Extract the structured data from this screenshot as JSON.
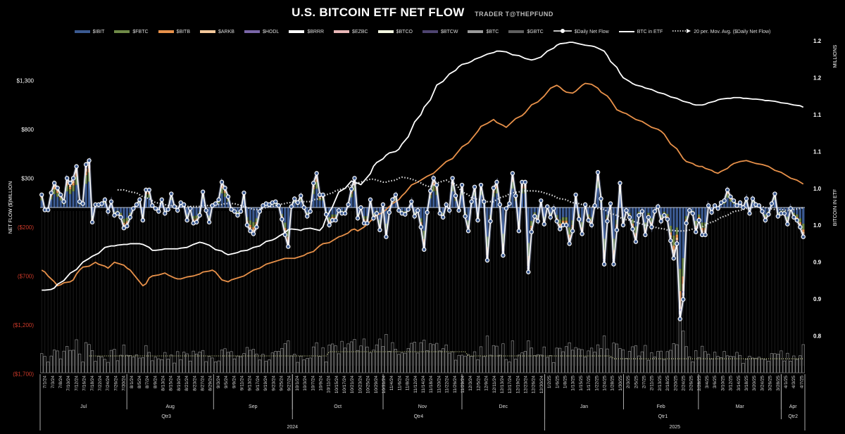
{
  "title": "U.S. BITCOIN ETF NET FLOW",
  "subtitle": "TRADER T@THEPFUND",
  "legend": [
    {
      "label": "$IBIT",
      "color": "#3b5a91",
      "kind": "bar"
    },
    {
      "label": "$FBTC",
      "color": "#6f8a47",
      "kind": "bar"
    },
    {
      "label": "$BITB",
      "color": "#e8914a",
      "kind": "bar"
    },
    {
      "label": "$ARKB",
      "color": "#f4c89a",
      "kind": "bar"
    },
    {
      "label": "$HODL",
      "color": "#7a66a8",
      "kind": "bar"
    },
    {
      "label": "$BRRR",
      "color": "#ffffff",
      "kind": "bar"
    },
    {
      "label": "$EZBC",
      "color": "#e9b7b7",
      "kind": "bar"
    },
    {
      "label": "$BTCO",
      "color": "#f3f6e0",
      "kind": "bar"
    },
    {
      "label": "$BTCW",
      "color": "#4e4470",
      "kind": "bar"
    },
    {
      "label": "$BTC",
      "color": "#9a9a9a",
      "kind": "bar"
    },
    {
      "label": "$GBTC",
      "color": "#606060",
      "kind": "bar"
    },
    {
      "label": "$Daily Net Flow",
      "color": "#ffffff",
      "kind": "line-marker"
    },
    {
      "label": "BTC in ETF",
      "color": "#ffffff",
      "kind": "line"
    },
    {
      "label": "20 per. Mov. Avg. ($Daily Net Flow)",
      "color": "#ffffff",
      "kind": "dotted"
    }
  ],
  "chart_data": {
    "type": "bar",
    "title": "U.S. BITCOIN ETF NET FLOW",
    "ylabel": "NET FLOW ($)MILLION",
    "y2label": "BITCOIN IN ETF",
    "y2unit": "MILLIONS",
    "ylim": [
      -1700,
      1550
    ],
    "y2lim": [
      0.8,
      1.28
    ],
    "yticks": [
      1300,
      800,
      300,
      -200,
      -700,
      -1200,
      -1700
    ],
    "ytick_labels": [
      "$1,300",
      "$800",
      "$300",
      "($200)",
      "($700)",
      "($1,200)",
      "($1,700)"
    ],
    "y2ticks": [
      1.25,
      1.2,
      1.15,
      1.1,
      1.05,
      1.0,
      0.95,
      0.9,
      0.85
    ],
    "y2tick_labels": [
      "1.2",
      "1.2",
      "1.1",
      "1.1",
      "1.0",
      "1.0",
      "0.9",
      "0.9",
      "0.8"
    ],
    "x_tick_labels": [
      "7/1/24",
      "7/3/24",
      "7/8/24",
      "7/10/24",
      "7/12/24",
      "7/16/24",
      "7/18/24",
      "7/22/24",
      "7/24/24",
      "7/26/24",
      "7/30/24",
      "8/1/24",
      "8/5/24",
      "8/7/24",
      "8/9/24",
      "8/13/24",
      "8/15/24",
      "8/19/24",
      "8/21/24",
      "8/23/24",
      "8/27/24",
      "8/29/24",
      "9/3/24",
      "9/5/24",
      "9/9/24",
      "9/11/24",
      "9/13/24",
      "9/17/24",
      "9/19/24",
      "9/23/24",
      "9/25/24",
      "9/27/24",
      "10/1/24",
      "10/3/24",
      "10/7/24",
      "10/9/24",
      "10/11/24",
      "10/15/24",
      "10/17/24",
      "10/21/24",
      "10/23/24",
      "10/25/24",
      "10/29/24",
      "10/31/24",
      "11/4/24",
      "11/6/24",
      "11/8/24",
      "11/12/24",
      "11/14/24",
      "11/18/24",
      "11/20/24",
      "11/22/24",
      "11/26/24",
      "11/29/24",
      "12/3/24",
      "12/5/24",
      "12/9/24",
      "12/11/24",
      "12/13/24",
      "12/17/24",
      "12/19/24",
      "12/23/24",
      "12/26/24",
      "12/30/24",
      "1/2/25",
      "1/6/25",
      "1/8/25",
      "1/13/25",
      "1/15/25",
      "1/17/25",
      "1/22/25",
      "1/24/25",
      "1/28/25",
      "1/30/25",
      "2/3/25",
      "2/5/25",
      "2/7/25",
      "2/11/25",
      "2/13/25",
      "2/18/25",
      "2/20/25",
      "2/24/25",
      "2/26/25",
      "2/28/25",
      "3/4/25",
      "3/6/25",
      "3/10/25",
      "3/12/25",
      "3/14/25",
      "3/18/25",
      "3/20/25",
      "3/24/25",
      "3/26/25",
      "3/28/25",
      "4/1/25",
      "4/3/25",
      "4/7/25"
    ],
    "months": [
      {
        "label": "Jul",
        "start": 0,
        "end": 22
      },
      {
        "label": "Aug",
        "start": 22,
        "end": 44
      },
      {
        "label": "Sep",
        "start": 44,
        "end": 64
      },
      {
        "label": "Oct",
        "start": 64,
        "end": 87
      },
      {
        "label": "Nov",
        "start": 87,
        "end": 107
      },
      {
        "label": "Dec",
        "start": 107,
        "end": 128
      },
      {
        "label": "Jan",
        "start": 128,
        "end": 148
      },
      {
        "label": "Feb",
        "start": 148,
        "end": 167
      },
      {
        "label": "Mar",
        "start": 167,
        "end": 188
      },
      {
        "label": "Apr",
        "start": 188,
        "end": 194
      }
    ],
    "quarters": [
      {
        "label": "Qtr3",
        "start": 0,
        "end": 64
      },
      {
        "label": "Qtr4",
        "start": 64,
        "end": 128
      },
      {
        "label": "Qtr1",
        "start": 128,
        "end": 188
      },
      {
        "label": "Qtr2",
        "start": 188,
        "end": 194
      }
    ],
    "years": [
      {
        "label": "2024",
        "start": 0,
        "end": 128
      },
      {
        "label": "2025",
        "start": 128,
        "end": 194
      }
    ],
    "daily_net_flow": [
      130,
      -25,
      -25,
      150,
      250,
      200,
      130,
      60,
      300,
      250,
      300,
      420,
      60,
      40,
      440,
      480,
      -150,
      30,
      30,
      40,
      80,
      -40,
      60,
      -80,
      -60,
      -100,
      -210,
      -190,
      -100,
      -10,
      30,
      80,
      -130,
      180,
      180,
      20,
      -10,
      -40,
      80,
      -60,
      -20,
      140,
      10,
      -30,
      50,
      30,
      -130,
      -10,
      -160,
      -150,
      -80,
      160,
      -30,
      -150,
      20,
      40,
      80,
      260,
      200,
      110,
      -20,
      -40,
      -80,
      -40,
      150,
      -180,
      -240,
      -270,
      -200,
      -40,
      20,
      40,
      30,
      50,
      60,
      20,
      -120,
      -280,
      -400,
      10,
      90,
      50,
      120,
      0,
      -90,
      -40,
      250,
      350,
      130,
      130,
      -70,
      -180,
      -130,
      -130,
      -30,
      -60,
      -60,
      30,
      190,
      300,
      -110,
      0,
      -160,
      -160,
      80,
      -110,
      -60,
      -230,
      30,
      -300,
      -50,
      80,
      130,
      -30,
      -60,
      -70,
      -20,
      60,
      -90,
      -30,
      -200,
      -430,
      -50,
      170,
      300,
      230,
      -60,
      -100,
      30,
      -30,
      300,
      120,
      -30,
      230,
      -90,
      -240,
      60,
      210,
      -130,
      230,
      60,
      -540,
      -140,
      200,
      260,
      30,
      -490,
      -10,
      40,
      350,
      120,
      -240,
      260,
      260,
      -660,
      -250,
      -90,
      -140,
      70,
      -170,
      10,
      -100,
      -10,
      -140,
      -220,
      -180,
      -180,
      -370,
      -240,
      130,
      -120,
      -270,
      30,
      -130,
      -180,
      20,
      360,
      90,
      -580,
      -140,
      40,
      -580,
      -230,
      250,
      -180,
      -30,
      -100,
      -220,
      -350,
      -80,
      -40,
      -280,
      -100,
      -200,
      -40,
      10,
      -140,
      -80,
      -120,
      -340,
      -520,
      -370,
      -1140,
      -940,
      -160,
      -30,
      -60,
      -250,
      -130,
      -280,
      -280,
      20,
      -50,
      20,
      -10,
      50,
      70,
      180,
      110,
      70,
      20,
      50,
      0,
      90,
      -60,
      90,
      30,
      20,
      -40,
      -130,
      -70,
      40,
      140,
      -90,
      -60,
      -60,
      -170,
      -10,
      -100,
      -130,
      -200,
      -300
    ],
    "ma20": [
      null,
      null,
      null,
      null,
      null,
      null,
      null,
      null,
      null,
      null,
      null,
      null,
      null,
      null,
      null,
      null,
      null,
      null,
      180,
      180,
      170,
      160,
      150,
      130,
      110,
      90,
      70,
      50,
      40,
      30,
      20,
      20,
      10,
      10,
      10,
      10,
      10,
      10,
      20,
      20,
      20,
      30,
      30,
      40,
      40,
      40,
      30,
      20,
      0,
      -10,
      -20,
      -20,
      -10,
      0,
      10,
      20,
      30,
      40,
      50,
      50,
      60,
      60,
      60,
      60,
      80,
      90,
      110,
      130,
      150,
      170,
      180,
      200,
      210,
      230,
      250,
      260,
      270,
      290,
      290,
      280,
      260,
      260,
      270,
      280,
      300,
      310,
      300,
      290,
      280,
      250,
      230,
      210,
      230,
      250,
      270,
      280,
      260,
      240,
      200,
      160,
      130,
      100,
      90,
      80,
      70,
      60,
      60,
      80,
      100,
      120,
      140,
      150,
      160,
      170,
      170,
      170,
      170,
      160,
      150,
      140,
      120,
      100,
      90,
      80,
      60,
      50,
      40,
      30,
      20,
      10,
      0,
      -10,
      -20,
      -40,
      -60,
      -80,
      -100,
      -120,
      -130,
      -140,
      -150,
      -170,
      -180,
      -190,
      -200,
      -210,
      -220,
      -230,
      -230,
      -240,
      -240,
      -240,
      -230,
      -220,
      -210,
      -200,
      -180,
      -160,
      -140,
      -120,
      -100,
      -80,
      -60,
      -40,
      -30,
      -20,
      -10,
      0,
      10,
      10,
      0,
      -10,
      -20,
      -20,
      -20,
      -30,
      -30,
      -20,
      -10,
      0
    ],
    "btc_in_etf_millions": [
      0.912,
      0.912,
      0.913,
      0.915,
      0.92,
      0.925,
      0.93,
      0.935,
      0.94,
      0.945,
      0.95,
      0.955,
      0.958,
      0.962,
      0.966,
      0.97,
      0.972,
      0.972,
      0.973,
      0.974,
      0.974,
      0.975,
      0.975,
      0.975,
      0.974,
      0.97,
      0.966,
      0.966,
      0.967,
      0.968,
      0.968,
      0.968,
      0.968,
      0.969,
      0.97,
      0.972,
      0.974,
      0.977,
      0.976,
      0.973,
      0.97,
      0.967,
      0.965,
      0.962,
      0.96,
      0.962,
      0.963,
      0.965,
      0.966,
      0.968,
      0.97,
      0.972,
      0.975,
      0.978,
      0.98,
      0.982,
      0.985,
      0.99,
      0.994,
      0.995,
      0.994,
      0.993,
      0.995,
      0.996,
      0.995,
      0.993,
      0.998,
      1.01,
      1.025,
      1.035,
      1.045,
      1.05,
      1.055,
      1.06,
      1.057,
      1.055,
      1.06,
      1.07,
      1.08,
      1.085,
      1.09,
      1.095,
      1.098,
      1.1,
      1.103,
      1.11,
      1.12,
      1.13,
      1.14,
      1.15,
      1.16,
      1.17,
      1.18,
      1.19,
      1.195,
      1.2,
      1.205,
      1.21,
      1.215,
      1.218,
      1.22,
      1.222,
      1.225,
      1.228,
      1.23,
      1.232,
      1.234,
      1.236,
      1.236,
      1.235,
      1.233,
      1.231,
      1.23,
      1.228,
      1.226,
      1.224,
      1.225,
      1.228,
      1.232,
      1.236,
      1.24,
      1.244,
      1.246,
      1.247,
      1.248,
      1.248,
      1.246,
      1.245,
      1.244,
      1.243,
      1.242,
      1.24,
      1.236,
      1.23,
      1.222,
      1.214,
      1.206,
      1.2,
      1.195,
      1.192,
      1.19,
      1.188,
      1.186,
      1.184,
      1.182,
      1.18,
      1.178,
      1.176,
      1.174,
      1.172,
      1.17,
      1.168,
      1.166,
      1.164,
      1.163,
      1.163,
      1.164,
      1.166,
      1.168,
      1.17,
      1.171,
      1.172,
      1.172,
      1.173,
      1.173,
      1.172,
      1.172,
      1.171,
      1.171,
      1.17,
      1.169,
      1.169,
      1.168,
      1.167,
      1.166,
      1.165,
      1.164,
      1.163,
      1.162,
      1.16
    ],
    "btc_price_line": [
      -640,
      -660,
      -700,
      -760,
      -800,
      -790,
      -770,
      -760,
      -740,
      -680,
      -640,
      -610,
      -600,
      -580,
      -560,
      -580,
      -600,
      -620,
      -590,
      -560,
      -570,
      -590,
      -620,
      -640,
      -680,
      -760,
      -800,
      -780,
      -720,
      -700,
      -690,
      -680,
      -670,
      -690,
      -720,
      -730,
      -730,
      -720,
      -710,
      -700,
      -690,
      -680,
      -660,
      -650,
      -640,
      -660,
      -700,
      -740,
      -760,
      -740,
      -730,
      -720,
      -700,
      -680,
      -660,
      -640,
      -620,
      -600,
      -580,
      -570,
      -560,
      -540,
      -530,
      -520,
      -520,
      -520,
      -510,
      -500,
      -490,
      -470,
      -450,
      -420,
      -390,
      -370,
      -360,
      -340,
      -320,
      -300,
      -290,
      -260,
      -230,
      -220,
      -240,
      -200,
      -170,
      -140,
      -110,
      -80,
      -50,
      -20,
      10,
      40,
      80,
      120,
      150,
      190,
      230,
      260,
      280,
      300,
      320,
      350,
      380,
      410,
      440,
      470,
      500,
      540,
      580,
      620,
      660,
      700,
      740,
      780,
      830,
      860,
      880,
      900,
      870,
      840,
      820,
      850,
      880,
      910,
      940,
      970,
      1010,
      1050,
      1080,
      1110,
      1140,
      1180,
      1220,
      1250,
      1230,
      1200,
      1180,
      1170,
      1190,
      1220,
      1250,
      1270,
      1260,
      1240,
      1220,
      1180,
      1140,
      1100,
      1050,
      1000,
      970,
      960,
      940,
      920,
      900,
      880,
      860,
      840,
      820,
      800,
      780,
      750,
      700,
      650,
      600,
      550,
      500,
      470,
      450,
      430,
      420,
      420,
      400,
      380,
      360,
      350,
      370,
      400,
      430,
      450,
      460,
      470,
      480,
      470,
      460,
      450,
      440,
      430,
      420,
      400,
      380,
      360,
      340,
      320,
      300,
      280,
      260,
      240
    ],
    "volume_bars": "gross flow magnitude bars along the chart bottom"
  }
}
